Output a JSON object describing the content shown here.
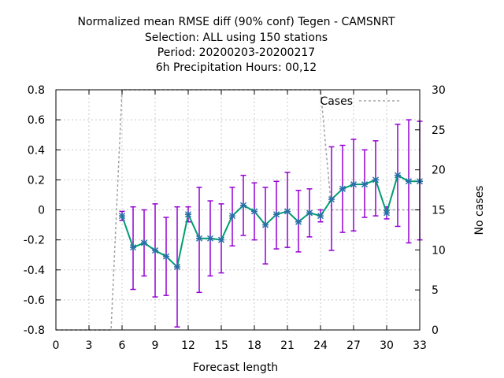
{
  "chart_data": {
    "type": "line",
    "title_lines": [
      "Normalized mean RMSE diff (90% conf) Tegen - CAMSNRT",
      "Selection: ALL using   150 stations",
      "Period: 20200203-20200217",
      "6h Precipitation   Hours:  00,12"
    ],
    "xlabel": "Forecast length",
    "ylabel_right": "No cases",
    "xlim": [
      0,
      33
    ],
    "ylim": [
      -0.8,
      0.8
    ],
    "y2lim": [
      0,
      30
    ],
    "x_ticks": [
      0,
      3,
      6,
      9,
      12,
      15,
      18,
      21,
      24,
      27,
      30,
      33
    ],
    "y_ticks": [
      -0.8,
      -0.6,
      -0.4,
      -0.2,
      0,
      0.2,
      0.4,
      0.6,
      0.8
    ],
    "y_tick_labels": [
      "-0.8",
      "-0.6",
      "-0.4",
      "-0.2",
      "0",
      "0.2",
      "0.4",
      "0.6",
      "0.8"
    ],
    "y2_ticks": [
      0,
      5,
      10,
      15,
      20,
      25,
      30
    ],
    "grid": true,
    "legend_position": "top-right",
    "colors": {
      "mean": "#009e73",
      "marker": "#2a6fa8",
      "errorbar": "#9400d3",
      "cases": "#a0a0a0",
      "grid": "#c8c8c8"
    },
    "series": [
      {
        "kind": "mean_diff",
        "x": [
          6,
          7,
          8,
          9,
          10,
          11,
          12,
          13,
          14,
          15,
          16,
          17,
          18,
          19,
          20,
          21,
          22,
          23,
          24,
          25,
          26,
          27,
          28,
          29,
          30,
          31,
          32,
          33
        ],
        "y": [
          -0.04,
          -0.25,
          -0.22,
          -0.27,
          -0.31,
          -0.38,
          -0.03,
          -0.19,
          -0.19,
          -0.2,
          -0.04,
          0.03,
          -0.01,
          -0.1,
          -0.03,
          -0.01,
          -0.08,
          -0.02,
          -0.04,
          0.07,
          0.14,
          0.17,
          0.17,
          0.2,
          -0.02,
          0.23,
          0.19,
          0.19
        ],
        "lower": [
          -0.07,
          -0.53,
          -0.44,
          -0.58,
          -0.57,
          -0.78,
          -0.08,
          -0.55,
          -0.44,
          -0.42,
          -0.24,
          -0.17,
          -0.2,
          -0.36,
          -0.26,
          -0.25,
          -0.28,
          -0.18,
          -0.08,
          -0.27,
          -0.15,
          -0.14,
          -0.05,
          -0.04,
          -0.06,
          -0.11,
          -0.22,
          -0.2
        ],
        "upper": [
          -0.01,
          0.02,
          0.0,
          0.04,
          -0.05,
          0.02,
          0.02,
          0.15,
          0.06,
          0.04,
          0.15,
          0.23,
          0.18,
          0.15,
          0.19,
          0.25,
          0.13,
          0.14,
          0.0,
          0.42,
          0.43,
          0.47,
          0.4,
          0.46,
          0.02,
          0.57,
          0.6,
          0.59
        ]
      },
      {
        "name": "Cases",
        "axis": "right",
        "x": [
          0,
          1,
          2,
          3,
          4,
          5,
          6,
          7,
          8,
          9,
          10,
          11,
          12,
          13,
          14,
          15,
          16,
          17,
          18,
          19,
          20,
          21,
          22,
          23,
          24,
          25,
          26,
          27,
          28,
          29,
          30,
          31,
          32,
          33
        ],
        "values": [
          0,
          0,
          0,
          0,
          0,
          0,
          30,
          30,
          30,
          30,
          30,
          30,
          30,
          30,
          30,
          30,
          30,
          30,
          30,
          30,
          30,
          30,
          30,
          30,
          30,
          15,
          15,
          15,
          15,
          15,
          15,
          15,
          15,
          15
        ]
      }
    ]
  }
}
